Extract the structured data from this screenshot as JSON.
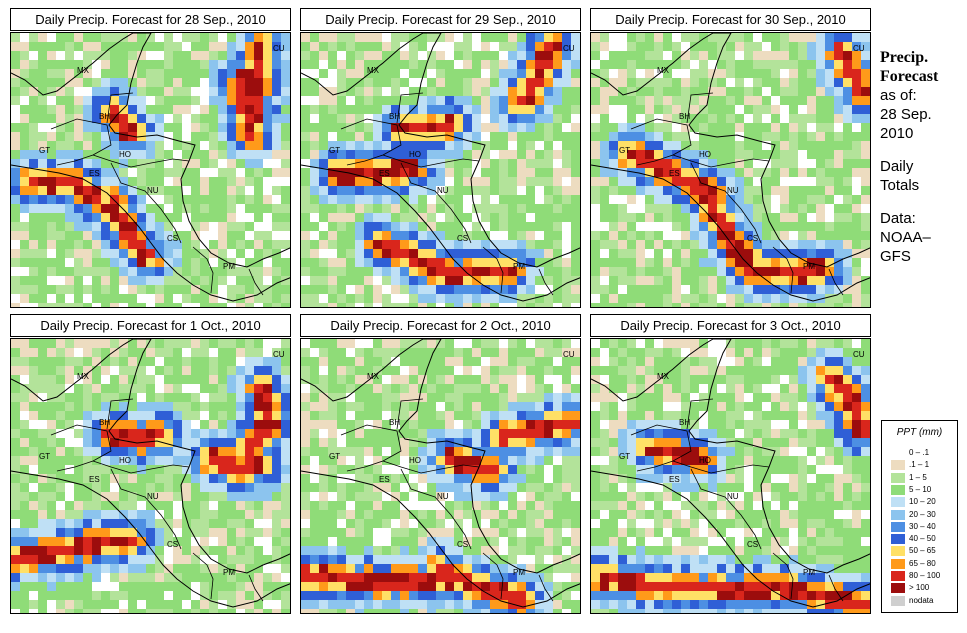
{
  "panels": [
    {
      "title": "Daily Precip. Forecast for  28 Sep., 2010"
    },
    {
      "title": "Daily Precip. Forecast for  29 Sep., 2010"
    },
    {
      "title": "Daily Precip. Forecast for  30 Sep., 2010"
    },
    {
      "title": "Daily Precip. Forecast for  1 Oct., 2010"
    },
    {
      "title": "Daily Precip. Forecast for  2 Oct., 2010"
    },
    {
      "title": "Daily Precip. Forecast for  3 Oct., 2010"
    }
  ],
  "map_labels": {
    "mx": "MX",
    "bh": "BH",
    "gt": "GT",
    "ho": "HO",
    "es": "ES",
    "nu": "NU",
    "cs": "CS",
    "pm": "PM",
    "cu": "CU"
  },
  "side": {
    "title1": "Precip.",
    "title2": "Forecast",
    "asof": "as of:",
    "date1": "28 Sep.",
    "date2": "2010",
    "daily1": "Daily",
    "daily2": "Totals",
    "data1": "Data:",
    "data2": "NOAA–",
    "data3": "GFS"
  },
  "legend": {
    "title": "PPT (mm)",
    "items": [
      {
        "label": "0 – .1",
        "color": "#ffffff"
      },
      {
        "label": ".1 – 1",
        "color": "#eddcc0"
      },
      {
        "label": "1 – 5",
        "color": "#b3e39a"
      },
      {
        "label": "5 – 10",
        "color": "#8fdc78"
      },
      {
        "label": "10 – 20",
        "color": "#bfe0f5"
      },
      {
        "label": "20 – 30",
        "color": "#8cc4ee"
      },
      {
        "label": "30 – 40",
        "color": "#4d8fe3"
      },
      {
        "label": "40 – 50",
        "color": "#2f5fd6"
      },
      {
        "label": "50 – 65",
        "color": "#ffe066"
      },
      {
        "label": "65 – 80",
        "color": "#ff9a1a"
      },
      {
        "label": "80 – 100",
        "color": "#d9261c"
      },
      {
        "label": "> 100",
        "color": "#9c0d0d"
      },
      {
        "label": "nodata",
        "color": "#cfcfcf"
      }
    ]
  }
}
